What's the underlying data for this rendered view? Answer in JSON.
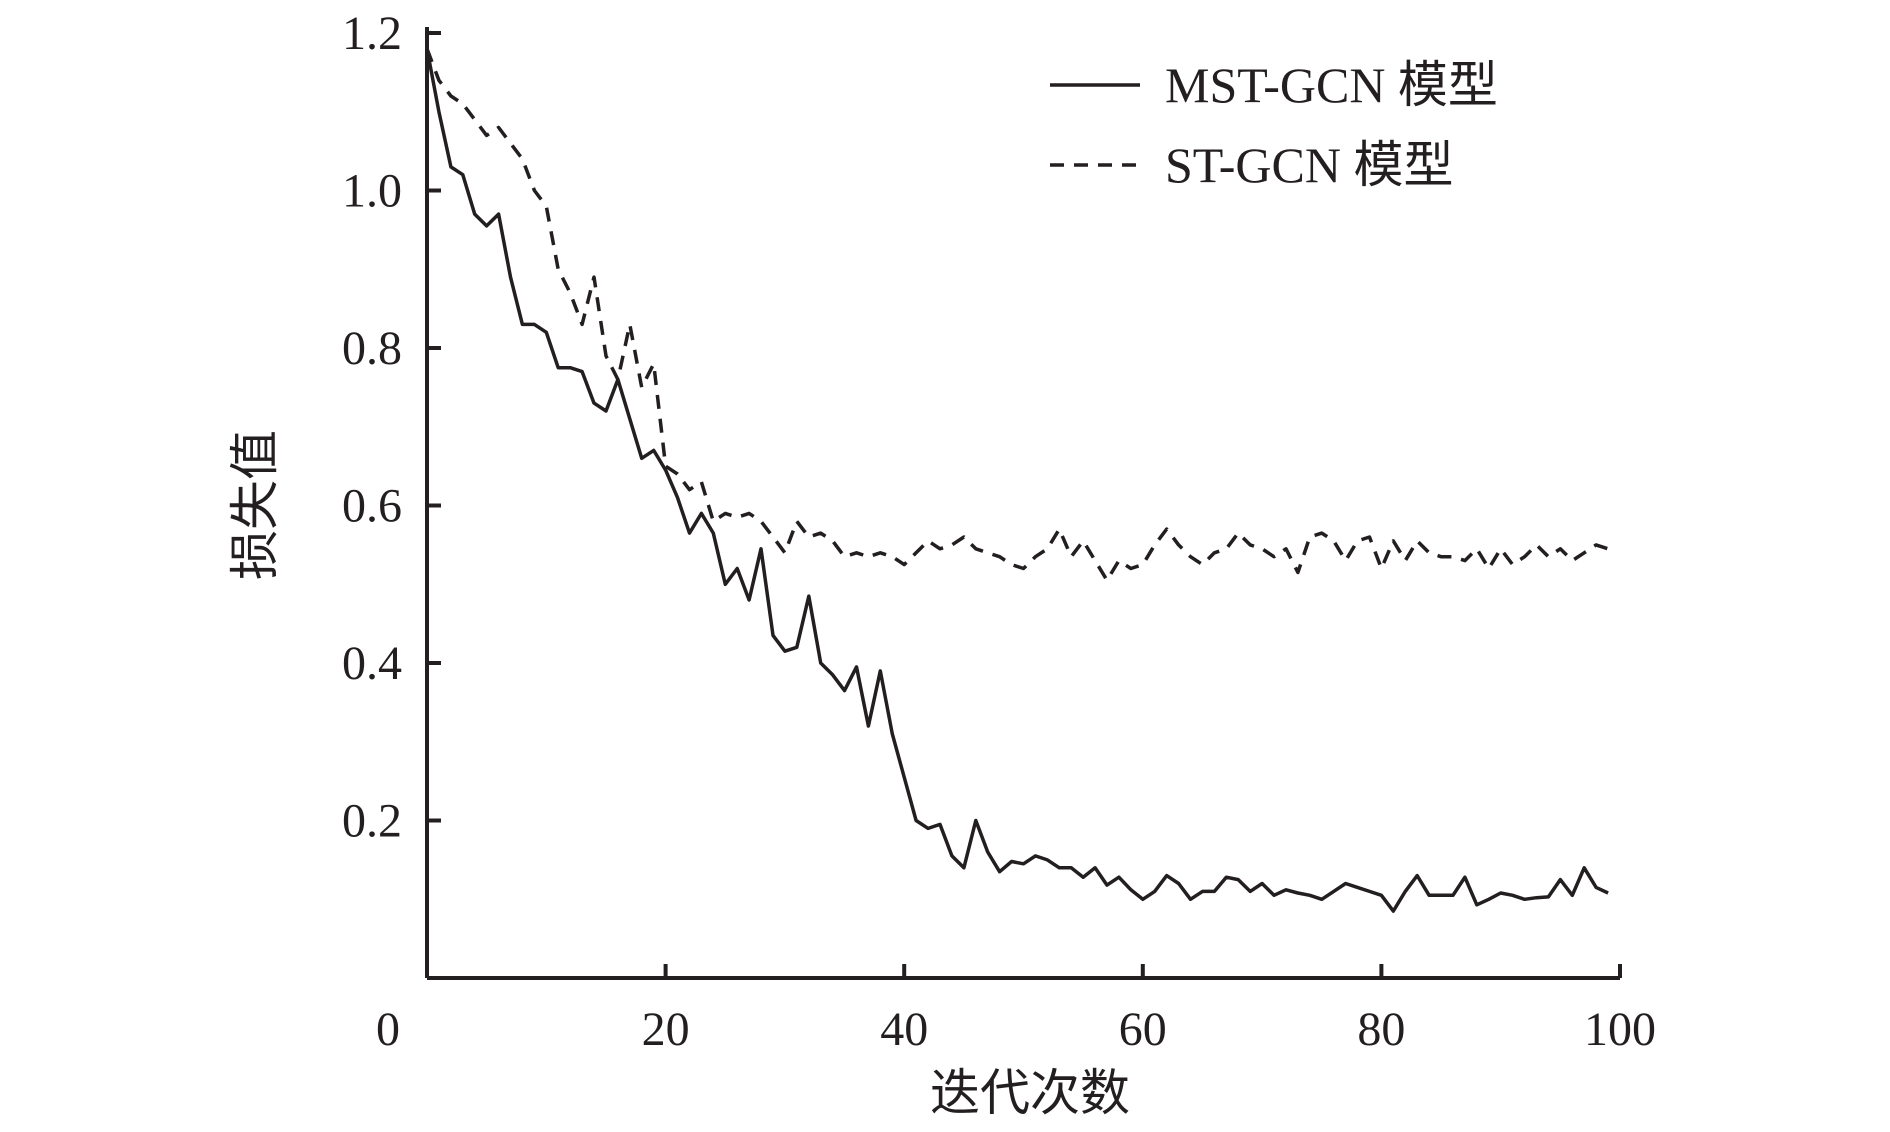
{
  "chart_data": {
    "type": "line",
    "xlabel": "迭代次数",
    "ylabel": "损失值",
    "xlim": [
      0,
      100
    ],
    "ylim": [
      0,
      1.2
    ],
    "x_ticks": [
      0,
      20,
      40,
      60,
      80,
      100
    ],
    "y_ticks": [
      0.2,
      0.4,
      0.6,
      0.8,
      1.0,
      1.2
    ],
    "x_tick_labels": [
      "0",
      "20",
      "40",
      "60",
      "80",
      "100"
    ],
    "y_tick_labels": [
      "0.2",
      "0.4",
      "0.6",
      "0.8",
      "1.0",
      "1.2"
    ],
    "grid": false,
    "legend_position": "top-right",
    "colors": {
      "line": "#231f20",
      "axis": "#231f20"
    },
    "x": [
      0,
      1,
      2,
      3,
      4,
      5,
      6,
      7,
      8,
      9,
      10,
      11,
      12,
      13,
      14,
      15,
      16,
      17,
      18,
      19,
      20,
      21,
      22,
      23,
      24,
      25,
      26,
      27,
      28,
      29,
      30,
      31,
      32,
      33,
      34,
      35,
      36,
      37,
      38,
      39,
      40,
      41,
      42,
      43,
      44,
      45,
      46,
      47,
      48,
      49,
      50,
      51,
      52,
      53,
      54,
      55,
      56,
      57,
      58,
      59,
      60,
      61,
      62,
      63,
      64,
      65,
      66,
      67,
      68,
      69,
      70,
      71,
      72,
      73,
      74,
      75,
      76,
      77,
      78,
      79,
      80,
      81,
      82,
      83,
      84,
      85,
      86,
      87,
      88,
      89,
      90,
      91,
      92,
      93,
      94,
      95,
      96,
      97,
      98,
      99
    ],
    "series": [
      {
        "name": "MST-GCN 模型",
        "style": "solid",
        "values": [
          1.18,
          1.1,
          1.03,
          1.02,
          0.97,
          0.955,
          0.97,
          0.89,
          0.83,
          0.83,
          0.82,
          0.775,
          0.775,
          0.77,
          0.73,
          0.72,
          0.76,
          0.71,
          0.66,
          0.67,
          0.645,
          0.61,
          0.565,
          0.59,
          0.565,
          0.5,
          0.52,
          0.48,
          0.545,
          0.435,
          0.415,
          0.42,
          0.485,
          0.4,
          0.385,
          0.365,
          0.395,
          0.32,
          0.39,
          0.31,
          0.255,
          0.2,
          0.19,
          0.195,
          0.155,
          0.14,
          0.2,
          0.16,
          0.135,
          0.148,
          0.145,
          0.155,
          0.15,
          0.14,
          0.14,
          0.128,
          0.14,
          0.118,
          0.128,
          0.112,
          0.1,
          0.11,
          0.13,
          0.12,
          0.1,
          0.11,
          0.11,
          0.128,
          0.125,
          0.11,
          0.12,
          0.105,
          0.112,
          0.108,
          0.105,
          0.1,
          0.11,
          0.12,
          0.115,
          0.11,
          0.105,
          0.085,
          0.11,
          0.13,
          0.105,
          0.105,
          0.105,
          0.128,
          0.093,
          0.1,
          0.108,
          0.105,
          0.1,
          0.102,
          0.103,
          0.125,
          0.105,
          0.14,
          0.115,
          0.108
        ]
      },
      {
        "name": "ST-GCN 模型",
        "style": "dashed",
        "values": [
          1.18,
          1.14,
          1.12,
          1.11,
          1.09,
          1.07,
          1.08,
          1.06,
          1.04,
          1.0,
          0.98,
          0.9,
          0.87,
          0.83,
          0.89,
          0.79,
          0.76,
          0.83,
          0.75,
          0.78,
          0.65,
          0.64,
          0.62,
          0.63,
          0.58,
          0.59,
          0.585,
          0.59,
          0.58,
          0.56,
          0.54,
          0.58,
          0.56,
          0.565,
          0.555,
          0.535,
          0.54,
          0.535,
          0.54,
          0.535,
          0.525,
          0.54,
          0.555,
          0.545,
          0.55,
          0.56,
          0.545,
          0.54,
          0.535,
          0.525,
          0.52,
          0.535,
          0.545,
          0.57,
          0.535,
          0.555,
          0.53,
          0.505,
          0.53,
          0.52,
          0.525,
          0.55,
          0.57,
          0.55,
          0.535,
          0.525,
          0.54,
          0.545,
          0.565,
          0.55,
          0.545,
          0.535,
          0.545,
          0.515,
          0.56,
          0.565,
          0.555,
          0.53,
          0.555,
          0.56,
          0.52,
          0.555,
          0.53,
          0.555,
          0.54,
          0.535,
          0.535,
          0.53,
          0.545,
          0.52,
          0.545,
          0.525,
          0.535,
          0.55,
          0.535,
          0.545,
          0.53,
          0.54,
          0.55,
          0.545
        ]
      }
    ]
  }
}
